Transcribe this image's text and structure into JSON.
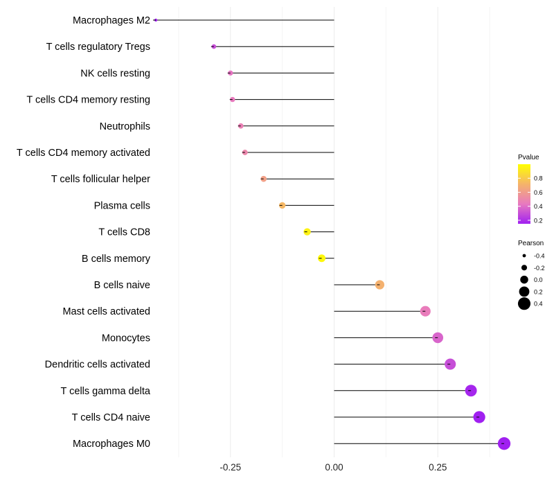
{
  "chart_data": {
    "type": "lollipop",
    "title": "",
    "xlabel": "",
    "ylabel": "",
    "xlim": [
      -0.43,
      0.43
    ],
    "xticks": [
      {
        "value": -0.25,
        "label": "-0.25"
      },
      {
        "value": 0.0,
        "label": "0.00"
      },
      {
        "value": 0.25,
        "label": "0.25"
      }
    ],
    "categories": [
      "Macrophages M2",
      "T cells regulatory  Tregs",
      "NK cells resting",
      "T cells CD4 memory resting",
      "Neutrophils",
      "T cells CD4 memory activated",
      "T cells follicular helper",
      "Plasma cells",
      "T cells CD8",
      "B cells memory",
      "B cells naive",
      "Mast cells activated",
      "Monocytes",
      "Dendritic cells activated",
      "T cells gamma delta",
      "T cells CD4 naive",
      "Macrophages M0"
    ],
    "pearson": [
      -0.43,
      -0.29,
      -0.25,
      -0.245,
      -0.225,
      -0.215,
      -0.17,
      -0.125,
      -0.065,
      -0.03,
      0.11,
      0.22,
      0.25,
      0.28,
      0.33,
      0.35,
      0.41
    ],
    "pvalue": [
      0.08,
      0.3,
      0.42,
      0.44,
      0.47,
      0.5,
      0.62,
      0.73,
      0.95,
      0.97,
      0.7,
      0.45,
      0.37,
      0.3,
      0.17,
      0.12,
      0.04
    ],
    "legend_pvalue": {
      "title": "Pvalue",
      "ticks": [
        {
          "value": 0.8,
          "label": "0.8"
        },
        {
          "value": 0.6,
          "label": "0.6"
        },
        {
          "value": 0.4,
          "label": "0.4"
        },
        {
          "value": 0.2,
          "label": "0.2"
        }
      ],
      "range": [
        0.15,
        1.0
      ],
      "colors": [
        "#a020f0",
        "#e879c0",
        "#f5b46a",
        "#ffff00"
      ]
    },
    "legend_pearson": {
      "title": "Pearson",
      "items": [
        {
          "value": -0.4,
          "label": "-0.4"
        },
        {
          "value": -0.2,
          "label": "-0.2"
        },
        {
          "value": 0.0,
          "label": "0.0"
        },
        {
          "value": 0.2,
          "label": "0.2"
        },
        {
          "value": 0.4,
          "label": "0.4"
        }
      ]
    }
  }
}
